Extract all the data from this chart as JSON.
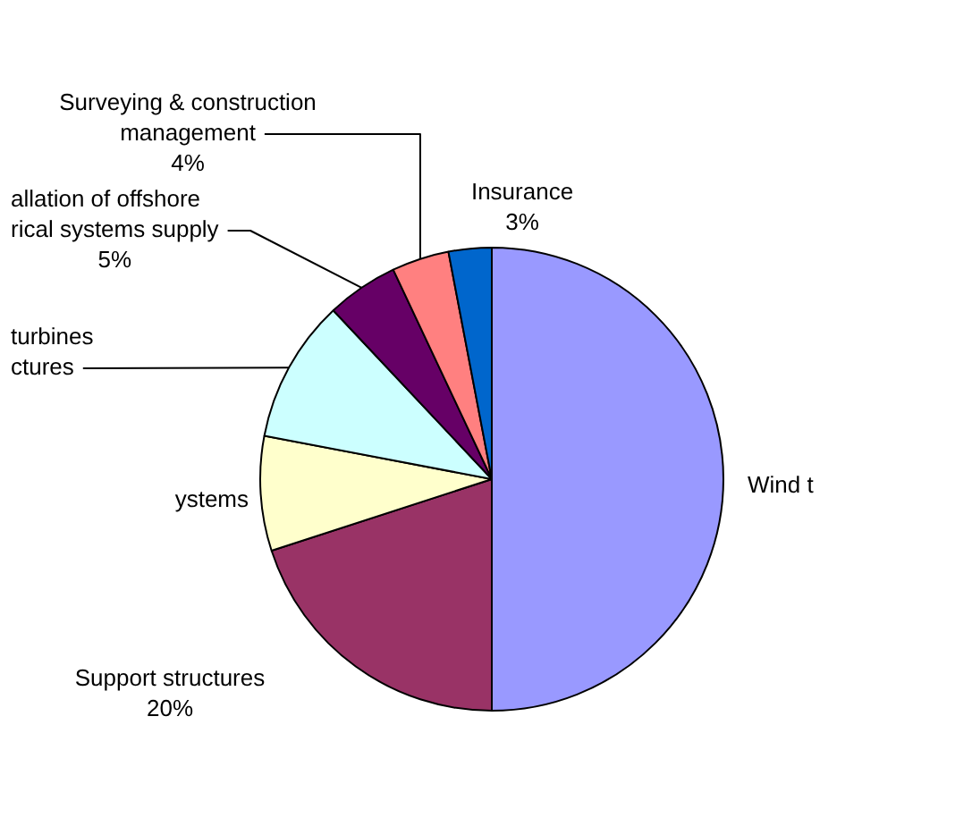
{
  "chart_data": {
    "type": "pie",
    "categories": [
      "Wind t",
      "Support structures",
      "ystems",
      "turbines ctures",
      "allation of offshore rical systems supply",
      "Surveying & construction management",
      "Insurance"
    ],
    "values": [
      50,
      20,
      8,
      10,
      5,
      4,
      3
    ],
    "colors": [
      "#9999ff",
      "#993366",
      "#ffffcc",
      "#ccffff",
      "#660066",
      "#ff8080",
      "#0066cc"
    ],
    "value_labels": [
      null,
      "20%",
      null,
      null,
      "5%",
      "4%",
      "3%"
    ]
  }
}
